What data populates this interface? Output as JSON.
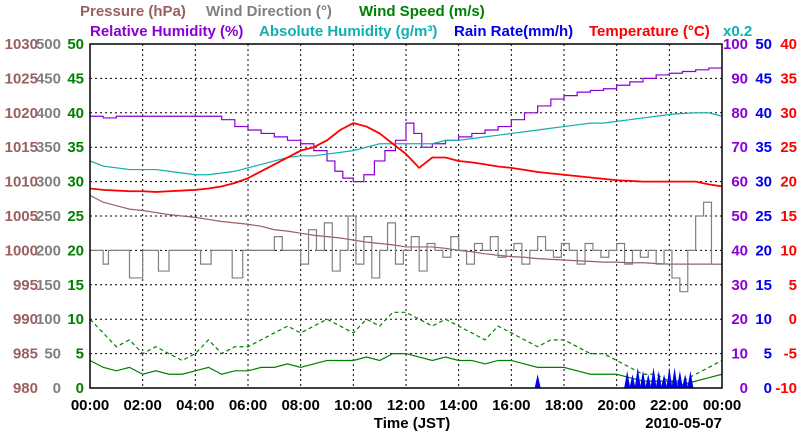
{
  "chart_data": {
    "type": "line",
    "xlabel": "Time (JST)",
    "date": "2010-05-07",
    "x_ticks": [
      "00:00",
      "02:00",
      "04:00",
      "06:00",
      "08:00",
      "10:00",
      "12:00",
      "14:00",
      "16:00",
      "18:00",
      "20:00",
      "22:00",
      "00:00"
    ],
    "x_hours": [
      0,
      24
    ],
    "legend_row1": [
      {
        "key": "pressure",
        "label": "Pressure (hPa)"
      },
      {
        "key": "wind_dir",
        "label": "Wind Direction (°)"
      },
      {
        "key": "wind_speed",
        "label": "Wind Speed (m/s)"
      }
    ],
    "legend_row2": [
      {
        "key": "rh",
        "label": "Relative Humidity (%)"
      },
      {
        "key": "ah",
        "label": "Absolute Humidity (g/m³)"
      },
      {
        "key": "rain",
        "label": "Rain Rate(mm/h)"
      },
      {
        "key": "temp",
        "label": "Temperature (°C)"
      },
      {
        "key": "ah_scale",
        "label": "x0.2"
      }
    ],
    "axes": {
      "pressure": {
        "ticks": [
          "1030",
          "1025",
          "1020",
          "1015",
          "1010",
          "1005",
          "1000",
          "995",
          "990",
          "985",
          "980"
        ],
        "range": [
          980,
          1030
        ]
      },
      "wind_dir": {
        "ticks": [
          "500",
          "450",
          "400",
          "350",
          "300",
          "250",
          "200",
          "150",
          "100",
          "50",
          "0"
        ],
        "range": [
          0,
          500
        ]
      },
      "wind_speed": {
        "ticks": [
          "50",
          "45",
          "40",
          "35",
          "30",
          "25",
          "20",
          "15",
          "10",
          "5",
          "0"
        ],
        "range": [
          0,
          50
        ]
      },
      "rh": {
        "ticks": [
          "100",
          "90",
          "80",
          "70",
          "60",
          "50",
          "40",
          "30",
          "20",
          "10",
          "0"
        ],
        "range": [
          0,
          100
        ]
      },
      "rain": {
        "ticks": [
          "50",
          "45",
          "40",
          "35",
          "30",
          "25",
          "20",
          "15",
          "10",
          "5",
          "0"
        ],
        "range": [
          0,
          50
        ]
      },
      "temp": {
        "ticks": [
          "40",
          "35",
          "30",
          "25",
          "20",
          "15",
          "10",
          "5",
          "0",
          "-5",
          "-10"
        ],
        "range": [
          -10,
          40
        ]
      }
    },
    "colors": {
      "pressure": "#9a6060",
      "wind_dir": "#808080",
      "wind_speed": "#008000",
      "rh": "#8a00d4",
      "ah": "#10b0b0",
      "rain": "#0000ee",
      "temp": "#ff0000",
      "grid": "#000000"
    },
    "series": [
      {
        "key": "rh",
        "axis": "rh",
        "step": true,
        "x": [
          0,
          0.5,
          1,
          1.5,
          2,
          2.5,
          3,
          3.5,
          4,
          4.5,
          5,
          5.5,
          6,
          6.5,
          7,
          7.5,
          8,
          8.5,
          9,
          9.3,
          9.6,
          10,
          10.4,
          10.8,
          11.2,
          11.6,
          12,
          12.3,
          12.6,
          13,
          13.5,
          14,
          14.5,
          15,
          15.5,
          16,
          16.5,
          17,
          17.5,
          18,
          18.5,
          19,
          19.5,
          20,
          20.5,
          21,
          21.5,
          22,
          22.5,
          23,
          23.5,
          24
        ],
        "y": [
          79,
          78.5,
          79,
          79,
          79,
          79,
          79,
          79,
          79,
          79,
          78,
          76,
          75,
          74,
          73,
          72,
          71,
          69,
          66,
          63,
          61,
          60,
          62,
          66,
          69,
          72,
          77,
          74,
          70,
          71,
          72,
          73,
          74,
          75,
          76,
          78,
          80,
          82,
          84,
          85,
          86,
          86.5,
          87,
          88,
          89,
          90,
          91,
          91.5,
          92,
          92.5,
          93,
          93
        ]
      },
      {
        "key": "ah",
        "axis": "rh",
        "x": [
          0,
          0.5,
          1,
          1.5,
          2,
          2.5,
          3,
          3.5,
          4,
          4.5,
          5,
          5.5,
          6,
          6.5,
          7,
          7.5,
          8,
          8.5,
          9,
          9.5,
          10,
          10.5,
          11,
          11.5,
          12,
          12.5,
          13,
          13.5,
          14,
          14.5,
          15,
          15.5,
          16,
          16.5,
          17,
          17.5,
          18,
          18.5,
          19,
          19.5,
          20,
          20.5,
          21,
          21.5,
          22,
          22.5,
          23,
          23.5,
          24
        ],
        "y": [
          66,
          64.5,
          64,
          63.5,
          63.5,
          63.5,
          63,
          62.5,
          62,
          62,
          62.5,
          63,
          64,
          65,
          66,
          67,
          67.5,
          67.5,
          68,
          68.5,
          69,
          70,
          71,
          71,
          71,
          71,
          71,
          72,
          72,
          72.5,
          73,
          73.5,
          74,
          74.5,
          75,
          75.5,
          76,
          76.5,
          77,
          77,
          77.5,
          78,
          78.5,
          79,
          79.5,
          79.8,
          80,
          80,
          79
        ]
      },
      {
        "key": "temp",
        "axis": "temp",
        "x": [
          0,
          0.5,
          1,
          1.5,
          2,
          2.5,
          3,
          3.5,
          4,
          4.5,
          5,
          5.5,
          6,
          6.5,
          7,
          7.5,
          8,
          8.5,
          9,
          9.5,
          10,
          10.5,
          11,
          11.5,
          12,
          12.5,
          13,
          13.5,
          14,
          14.5,
          15,
          15.5,
          16,
          16.5,
          17,
          17.5,
          18,
          18.5,
          19,
          19.5,
          20,
          20.5,
          21,
          21.5,
          22,
          22.5,
          23,
          23.5,
          24
        ],
        "y": [
          19,
          18.8,
          18.7,
          18.6,
          18.6,
          18.5,
          18.6,
          18.7,
          18.8,
          19,
          19.3,
          19.8,
          20.5,
          21.5,
          22.5,
          23.5,
          24.5,
          25,
          26,
          27.5,
          28.5,
          28,
          27,
          25.5,
          24,
          22,
          23.5,
          23.5,
          23,
          22.8,
          22.5,
          22.2,
          22,
          21.7,
          21.4,
          21.2,
          21,
          20.8,
          20.6,
          20.4,
          20.2,
          20.1,
          20,
          20,
          20,
          20,
          20,
          19.6,
          19.3
        ]
      },
      {
        "key": "pressure",
        "axis": "pressure",
        "x": [
          0,
          0.5,
          1,
          1.5,
          2,
          2.5,
          3,
          3.5,
          4,
          4.5,
          5,
          5.5,
          6,
          6.5,
          7,
          7.5,
          8,
          8.5,
          9,
          9.5,
          10,
          10.5,
          11,
          11.5,
          12,
          12.5,
          13,
          13.5,
          14,
          14.5,
          15,
          15.5,
          16,
          16.5,
          17,
          17.5,
          18,
          18.5,
          19,
          19.5,
          20,
          20.5,
          21,
          21.5,
          22,
          22.5,
          23,
          23.5,
          24
        ],
        "y": [
          1008,
          1007,
          1006.5,
          1006,
          1005.8,
          1005.5,
          1005.2,
          1005,
          1004.8,
          1004.5,
          1004.2,
          1004,
          1003.8,
          1003.5,
          1003,
          1002.8,
          1002.5,
          1002.2,
          1002,
          1001.8,
          1001.5,
          1001.2,
          1001,
          1000.8,
          1000.5,
          1000.5,
          1000.5,
          1000.3,
          1000,
          999.8,
          999.5,
          999.3,
          999.1,
          999,
          998.8,
          998.7,
          998.6,
          998.5,
          998.4,
          998.3,
          998.3,
          998.2,
          998.2,
          998.1,
          998,
          998,
          998,
          998,
          998
        ]
      },
      {
        "key": "wind_dir",
        "axis": "wind_dir",
        "step": true,
        "x": [
          0,
          0.5,
          0.7,
          1.2,
          1.5,
          2,
          2.3,
          2.6,
          3,
          3.4,
          3.8,
          4.2,
          4.6,
          5,
          5.4,
          5.8,
          6.2,
          6.6,
          7,
          7.3,
          7.6,
          8,
          8.3,
          8.6,
          8.9,
          9.2,
          9.5,
          9.8,
          10.1,
          10.4,
          10.7,
          11,
          11.3,
          11.6,
          11.9,
          12.2,
          12.5,
          12.8,
          13.1,
          13.4,
          13.7,
          14,
          14.3,
          14.6,
          14.9,
          15.2,
          15.5,
          15.8,
          16.1,
          16.4,
          16.7,
          17,
          17.3,
          17.6,
          17.9,
          18.2,
          18.5,
          18.8,
          19.1,
          19.4,
          19.7,
          20,
          20.3,
          20.6,
          20.9,
          21.2,
          21.5,
          21.8,
          22.1,
          22.4,
          22.7,
          23,
          23.3,
          23.6,
          24
        ],
        "y": [
          200,
          180,
          200,
          200,
          160,
          200,
          200,
          170,
          200,
          200,
          200,
          180,
          200,
          200,
          160,
          200,
          200,
          200,
          220,
          200,
          200,
          180,
          230,
          200,
          240,
          170,
          200,
          250,
          180,
          220,
          160,
          200,
          240,
          180,
          200,
          220,
          170,
          210,
          200,
          190,
          220,
          200,
          180,
          210,
          200,
          220,
          190,
          200,
          210,
          180,
          200,
          220,
          200,
          190,
          210,
          200,
          180,
          210,
          200,
          190,
          200,
          210,
          180,
          200,
          190,
          200,
          180,
          200,
          160,
          140,
          200,
          250,
          270,
          180,
          220
        ]
      },
      {
        "key": "wind_speed",
        "axis": "wind_speed",
        "x": [
          0,
          0.5,
          1,
          1.5,
          2,
          2.5,
          3,
          3.5,
          4,
          4.5,
          5,
          5.5,
          6,
          6.5,
          7,
          7.5,
          8,
          8.5,
          9,
          9.5,
          10,
          10.5,
          11,
          11.5,
          12,
          12.5,
          13,
          13.5,
          14,
          14.5,
          15,
          15.5,
          16,
          16.5,
          17,
          17.5,
          18,
          18.5,
          19,
          19.5,
          20,
          20.5,
          21,
          21.5,
          22,
          22.5,
          23,
          23.5,
          24
        ],
        "y": [
          4,
          3,
          2.5,
          3,
          2,
          2.5,
          2,
          2,
          2.5,
          3,
          2,
          2.5,
          2.5,
          3,
          3,
          3.5,
          3,
          3.5,
          4,
          4,
          4,
          4.5,
          4,
          5,
          5,
          4.5,
          4,
          4.5,
          4,
          4,
          3.5,
          4,
          4,
          3.5,
          3,
          3,
          3,
          2.5,
          2,
          2,
          2,
          1.5,
          1,
          1,
          1,
          0.5,
          1,
          1.5,
          2
        ]
      },
      {
        "key": "wind_gust",
        "axis": "wind_speed",
        "dashed": true,
        "x": [
          0,
          0.5,
          1,
          1.5,
          2,
          2.5,
          3,
          3.5,
          4,
          4.5,
          5,
          5.5,
          6,
          6.5,
          7,
          7.5,
          8,
          8.5,
          9,
          9.5,
          10,
          10.5,
          11,
          11.5,
          12,
          12.5,
          13,
          13.5,
          14,
          14.5,
          15,
          15.5,
          16,
          16.5,
          17,
          17.5,
          18,
          18.5,
          19,
          19.5,
          20,
          20.5,
          21,
          21.5,
          22,
          22.5,
          23,
          23.5,
          24
        ],
        "y": [
          10,
          8,
          6,
          7,
          5,
          6,
          5,
          4,
          5,
          7,
          5,
          6,
          6,
          7,
          8,
          9,
          8,
          9,
          10,
          9,
          8,
          10,
          9,
          11,
          11,
          10,
          9,
          10,
          9,
          8,
          7,
          9,
          8,
          7,
          6,
          7,
          7,
          6,
          5,
          5,
          4,
          3,
          2,
          2,
          1,
          1,
          2,
          3,
          4
        ]
      },
      {
        "key": "rain",
        "axis": "rain",
        "type": "bar",
        "x": [
          17,
          20.4,
          20.6,
          20.8,
          21,
          21.2,
          21.4,
          21.6,
          21.8,
          22,
          22.2,
          22.4,
          22.6,
          22.8
        ],
        "y": [
          2,
          2.5,
          2,
          3,
          2.5,
          2,
          3,
          2.5,
          2,
          3,
          3,
          2.5,
          2,
          2.5
        ]
      }
    ]
  }
}
